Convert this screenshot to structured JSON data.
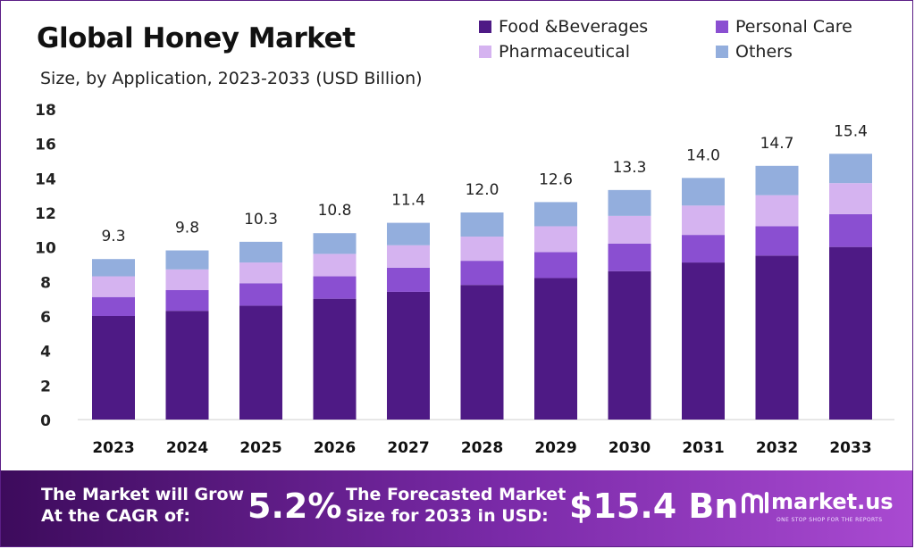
{
  "header": {
    "title": "Global Honey Market",
    "subtitle": "Size, by Application, 2023-2033 (USD Billion)"
  },
  "chart_data": {
    "type": "bar",
    "stacked": true,
    "title": "Global Honey Market",
    "subtitle": "Size, by Application, 2023-2033 (USD Billion)",
    "categories": [
      "2023",
      "2024",
      "2025",
      "2026",
      "2027",
      "2028",
      "2029",
      "2030",
      "2031",
      "2032",
      "2033"
    ],
    "series": [
      {
        "name": "Food &Beverages",
        "color": "#4e1a85",
        "values": [
          6.0,
          6.3,
          6.6,
          7.0,
          7.4,
          7.8,
          8.2,
          8.6,
          9.1,
          9.5,
          10.0
        ]
      },
      {
        "name": "Personal Care",
        "color": "#8a4fd1",
        "values": [
          1.1,
          1.2,
          1.3,
          1.3,
          1.4,
          1.4,
          1.5,
          1.6,
          1.6,
          1.7,
          1.9
        ]
      },
      {
        "name": "Pharmaceutical",
        "color": "#d5b3f0",
        "values": [
          1.2,
          1.2,
          1.2,
          1.3,
          1.3,
          1.4,
          1.5,
          1.6,
          1.7,
          1.8,
          1.8
        ]
      },
      {
        "name": "Others",
        "color": "#93aedd",
        "values": [
          1.0,
          1.1,
          1.2,
          1.2,
          1.3,
          1.4,
          1.4,
          1.5,
          1.6,
          1.7,
          1.7
        ]
      }
    ],
    "totals": [
      "9.3",
      "9.8",
      "10.3",
      "10.8",
      "11.4",
      "12.0",
      "12.6",
      "13.3",
      "14.0",
      "14.7",
      "15.4"
    ],
    "ylim": [
      0,
      18
    ],
    "yticks": [
      "0",
      "2",
      "4",
      "6",
      "8",
      "10",
      "12",
      "14",
      "16",
      "18"
    ],
    "xlabel": "",
    "ylabel": "",
    "grid": false,
    "legend_position": "top-right"
  },
  "footer": {
    "cagr_line1": "The Market will Grow",
    "cagr_line2": "At the CAGR of:",
    "cagr_value": "5.2%",
    "forecast_line1": "The Forecasted Market",
    "forecast_line2": "Size for 2033 in USD:",
    "forecast_value": "$15.4 Bn",
    "brand_name": "market.us",
    "brand_tagline": "ONE STOP SHOP FOR THE REPORTS",
    "brand_icon": "market-us-logo-icon"
  }
}
